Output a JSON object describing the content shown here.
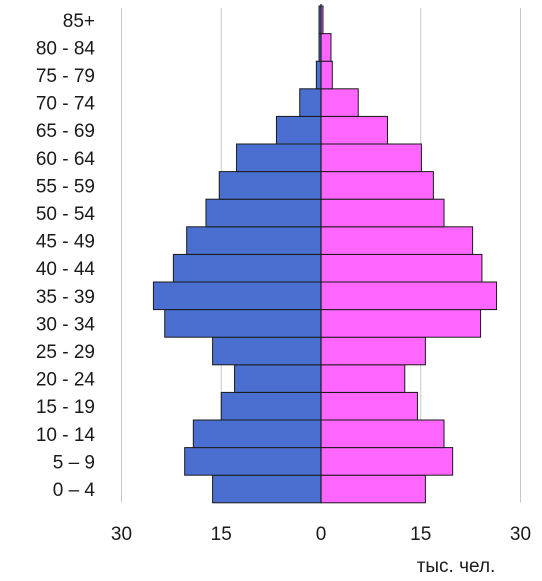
{
  "chart_data": {
    "type": "bar",
    "orientation": "horizontal",
    "layout": "population-pyramid",
    "categories": [
      "0 – 4",
      "5 – 9",
      "10 - 14",
      "15 - 19",
      "20 - 24",
      "25 - 29",
      "30 - 34",
      "35 - 39",
      "40 - 44",
      "45 - 49",
      "50 - 54",
      "55 - 59",
      "60 - 64",
      "65 - 69",
      "70 - 74",
      "75 - 79",
      "80 - 84",
      "85+"
    ],
    "series": [
      {
        "side": "left",
        "color": "#4a6fd0",
        "values": [
          16.3,
          20.5,
          19.2,
          15.0,
          13.0,
          16.3,
          23.5,
          25.2,
          22.2,
          20.2,
          17.3,
          15.3,
          12.7,
          6.7,
          3.2,
          0.7,
          0.3,
          0.3
        ]
      },
      {
        "side": "right",
        "color": "#ff66ff",
        "values": [
          15.7,
          19.8,
          18.5,
          14.5,
          12.6,
          15.7,
          24.0,
          26.4,
          24.2,
          22.8,
          18.5,
          16.9,
          15.1,
          10.0,
          5.6,
          1.7,
          1.5,
          0.3
        ]
      }
    ],
    "xticks": [
      30,
      15,
      0,
      15,
      30
    ],
    "xlim": [
      -30,
      30
    ],
    "xlabel": "тыс. чел.",
    "grid": true,
    "grid_color": "#c8c8c8",
    "edge_color": "#1a1a1a"
  }
}
